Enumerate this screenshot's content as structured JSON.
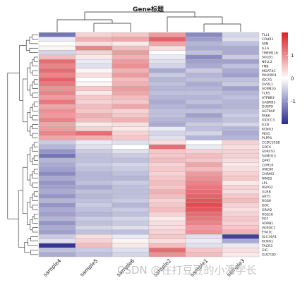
{
  "chart_data": {
    "type": "heatmap",
    "title": "Gene标题",
    "columns": [
      "sample4",
      "sample5",
      "sample6",
      "sample2",
      "sample1",
      "sample3"
    ],
    "rows": [
      {
        "gene": "TLL1",
        "values": [
          -1.3,
          0.4,
          0.5,
          0.9,
          -1.1,
          -0.4
        ]
      },
      {
        "gene": "CDHR1",
        "values": [
          -0.2,
          0.7,
          0.8,
          1.4,
          -0.9,
          -0.3
        ]
      },
      {
        "gene": "SPN",
        "values": [
          0.0,
          0.3,
          0.2,
          0.8,
          -0.7,
          -0.6
        ]
      },
      {
        "gene": "IL1A",
        "values": [
          0.1,
          1.1,
          0.6,
          0.3,
          -0.8,
          -0.8
        ]
      },
      {
        "gene": "TMEM116",
        "values": [
          -0.4,
          0.4,
          0.9,
          0.0,
          -0.6,
          -0.8
        ]
      },
      {
        "gene": "SOLD1",
        "values": [
          0.6,
          0.2,
          0.7,
          -0.2,
          -1.1,
          -0.5
        ]
      },
      {
        "gene": "NELL2",
        "values": [
          1.3,
          -0.2,
          0.9,
          -0.3,
          -0.9,
          -0.9
        ]
      },
      {
        "gene": "FNB",
        "values": [
          1.1,
          -0.3,
          1.0,
          -0.4,
          -0.8,
          -0.6
        ]
      },
      {
        "gene": "MGAT4C",
        "values": [
          1.3,
          0.1,
          0.7,
          -0.8,
          -0.5,
          -0.8
        ]
      },
      {
        "gene": "POLYRP4",
        "values": [
          1.1,
          0.3,
          0.9,
          -0.5,
          -0.7,
          -0.9
        ]
      },
      {
        "gene": "IQCA1",
        "values": [
          1.4,
          0.0,
          0.6,
          -0.7,
          -0.6,
          -0.6
        ]
      },
      {
        "gene": "OVOL1",
        "values": [
          1.2,
          0.1,
          0.7,
          -0.6,
          -0.8,
          -0.5
        ]
      },
      {
        "gene": "SCNN1G",
        "values": [
          1.0,
          0.5,
          0.9,
          -0.7,
          -0.7,
          -0.9
        ]
      },
      {
        "gene": "TLR5",
        "values": [
          1.1,
          0.2,
          0.8,
          -0.6,
          -0.6,
          -0.7
        ]
      },
      {
        "gene": "ATP8B3",
        "values": [
          0.9,
          0.5,
          0.6,
          -0.7,
          -0.7,
          -0.6
        ]
      },
      {
        "gene": "GABRB3",
        "values": [
          1.2,
          0.4,
          0.5,
          -0.8,
          -0.6,
          -0.7
        ]
      },
      {
        "gene": "DUSP9",
        "values": [
          0.8,
          0.6,
          0.8,
          -0.7,
          -0.8,
          -0.7
        ]
      },
      {
        "gene": "AGTRAP",
        "values": [
          1.0,
          0.5,
          0.4,
          -0.6,
          -0.6,
          -0.6
        ]
      },
      {
        "gene": "PAK6",
        "values": [
          0.9,
          0.7,
          0.5,
          -0.6,
          -0.9,
          -0.5
        ]
      },
      {
        "gene": "IGDCC3",
        "values": [
          1.1,
          0.6,
          0.7,
          -0.7,
          -0.7,
          -0.6
        ]
      },
      {
        "gene": "IL1B",
        "values": [
          0.8,
          0.2,
          0.3,
          -0.8,
          -0.5,
          -0.4
        ]
      },
      {
        "gene": "KCNG3",
        "values": [
          0.9,
          0.4,
          0.2,
          -0.2,
          -0.6,
          -0.7
        ]
      },
      {
        "gene": "PEX5",
        "values": [
          1.1,
          1.3,
          0.4,
          -0.4,
          -0.4,
          -0.8
        ]
      },
      {
        "gene": "PLPP4",
        "values": [
          0.8,
          0.7,
          0.5,
          -0.3,
          -0.7,
          -0.7
        ]
      },
      {
        "gene": "CCDC102B",
        "values": [
          -0.5,
          -0.2,
          -0.3,
          0.3,
          0.0,
          0.4
        ]
      },
      {
        "gene": "GDF6",
        "values": [
          -0.7,
          -0.3,
          0.0,
          1.3,
          -0.2,
          0.3
        ]
      },
      {
        "gene": "SORCS1",
        "values": [
          -1.0,
          -0.5,
          -0.3,
          0.5,
          0.4,
          0.4
        ]
      },
      {
        "gene": "SAMD13",
        "values": [
          -1.3,
          -0.6,
          -0.5,
          0.5,
          0.6,
          0.4
        ]
      },
      {
        "gene": "QPRT",
        "values": [
          -0.7,
          -0.6,
          -0.6,
          0.6,
          0.5,
          0.3
        ]
      },
      {
        "gene": "CDH16",
        "values": [
          -0.8,
          -0.5,
          -0.4,
          0.4,
          0.8,
          0.2
        ]
      },
      {
        "gene": "UNC80",
        "values": [
          -0.9,
          -0.6,
          -0.5,
          0.5,
          0.6,
          0.3
        ]
      },
      {
        "gene": "CHRM3",
        "values": [
          -1.1,
          -0.7,
          -0.6,
          0.4,
          0.9,
          0.4
        ]
      },
      {
        "gene": "RIMS2",
        "values": [
          -0.8,
          -0.7,
          -0.7,
          0.5,
          1.0,
          0.5
        ]
      },
      {
        "gene": "LPL",
        "values": [
          -1.0,
          -0.6,
          -0.5,
          0.6,
          1.1,
          0.2
        ]
      },
      {
        "gene": "RSPO2",
        "values": [
          -0.9,
          -0.8,
          -0.6,
          0.5,
          1.2,
          0.4
        ]
      },
      {
        "gene": "GLRB",
        "values": [
          -0.8,
          -0.6,
          -0.6,
          0.7,
          1.3,
          0.3
        ]
      },
      {
        "gene": "ART5",
        "values": [
          -1.0,
          -0.7,
          -0.6,
          0.6,
          1.4,
          0.5
        ]
      },
      {
        "gene": "RGS8",
        "values": [
          -0.7,
          -0.6,
          -0.5,
          0.4,
          1.5,
          0.6
        ]
      },
      {
        "gene": "DDC",
        "values": [
          -1.0,
          -0.5,
          -0.7,
          0.5,
          1.6,
          0.4
        ]
      },
      {
        "gene": "GRIA2",
        "values": [
          -0.8,
          -0.6,
          -0.5,
          0.6,
          1.5,
          0.3
        ]
      },
      {
        "gene": "RGS16",
        "values": [
          -0.9,
          -0.7,
          -0.6,
          0.4,
          1.3,
          0.4
        ]
      },
      {
        "gene": "PGF",
        "values": [
          -0.7,
          -0.5,
          -0.4,
          0.2,
          1.2,
          0.5
        ]
      },
      {
        "gene": "ADRB1",
        "values": [
          -1.0,
          -0.6,
          -0.5,
          0.3,
          1.1,
          0.4
        ]
      },
      {
        "gene": "POPDC2",
        "values": [
          -0.8,
          -0.4,
          -0.3,
          0.3,
          0.9,
          0.5
        ]
      },
      {
        "gene": "EVA1C",
        "values": [
          -0.9,
          -0.6,
          -0.6,
          0.4,
          1.0,
          0.7
        ]
      },
      {
        "gene": "SLC14A1",
        "values": [
          -0.5,
          0.3,
          -0.2,
          0.5,
          -0.3,
          -1.8
        ]
      },
      {
        "gene": "KCNG1",
        "values": [
          -0.3,
          0.4,
          0.1,
          0.3,
          -0.2,
          -0.8
        ]
      },
      {
        "gene": "TACR3",
        "values": [
          -1.9,
          0.6,
          0.2,
          0.6,
          -0.3,
          -0.2
        ]
      },
      {
        "gene": "GlG",
        "values": [
          -0.6,
          -0.5,
          -0.3,
          1.3,
          0.5,
          0.3
        ]
      },
      {
        "gene": "GUCY2D",
        "values": [
          -0.8,
          -0.6,
          -0.4,
          1.0,
          0.6,
          0.2
        ]
      }
    ],
    "color_scale": {
      "low": "#2b2c8f",
      "mid": "#ffffff",
      "high": "#d72027",
      "ticks": [
        1,
        0,
        -1
      ],
      "range": [
        -2,
        2
      ]
    },
    "grid": false,
    "legend": "right"
  },
  "watermark": "CSDN @在打豆豆的小潘学长"
}
